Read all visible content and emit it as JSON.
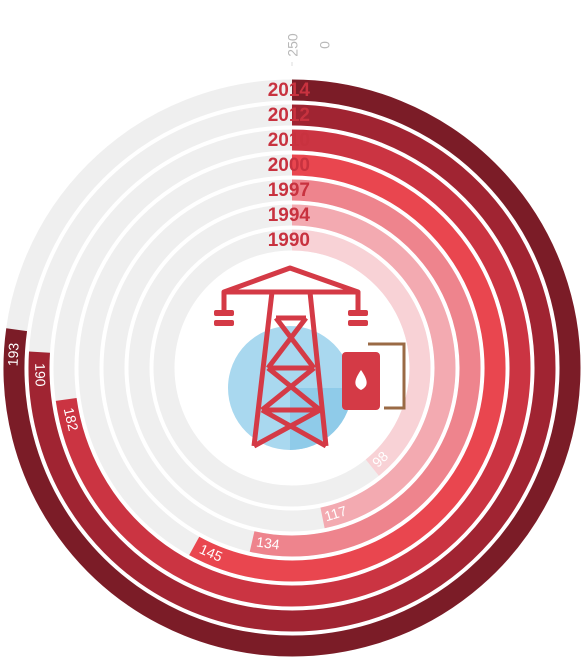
{
  "chart_data": {
    "type": "radial_bar",
    "categories": [
      "2014",
      "2012",
      "2010",
      "2000",
      "1997",
      "1994",
      "1990"
    ],
    "values": [
      193,
      190,
      182,
      145,
      134,
      117,
      98
    ],
    "colors": [
      "#7b1c27",
      "#a02432",
      "#cb3442",
      "#e9464f",
      "#ee848d",
      "#f3aab1",
      "#f8d2d6"
    ],
    "xlim": [
      0,
      250
    ],
    "xticks": [
      0,
      250
    ]
  }
}
